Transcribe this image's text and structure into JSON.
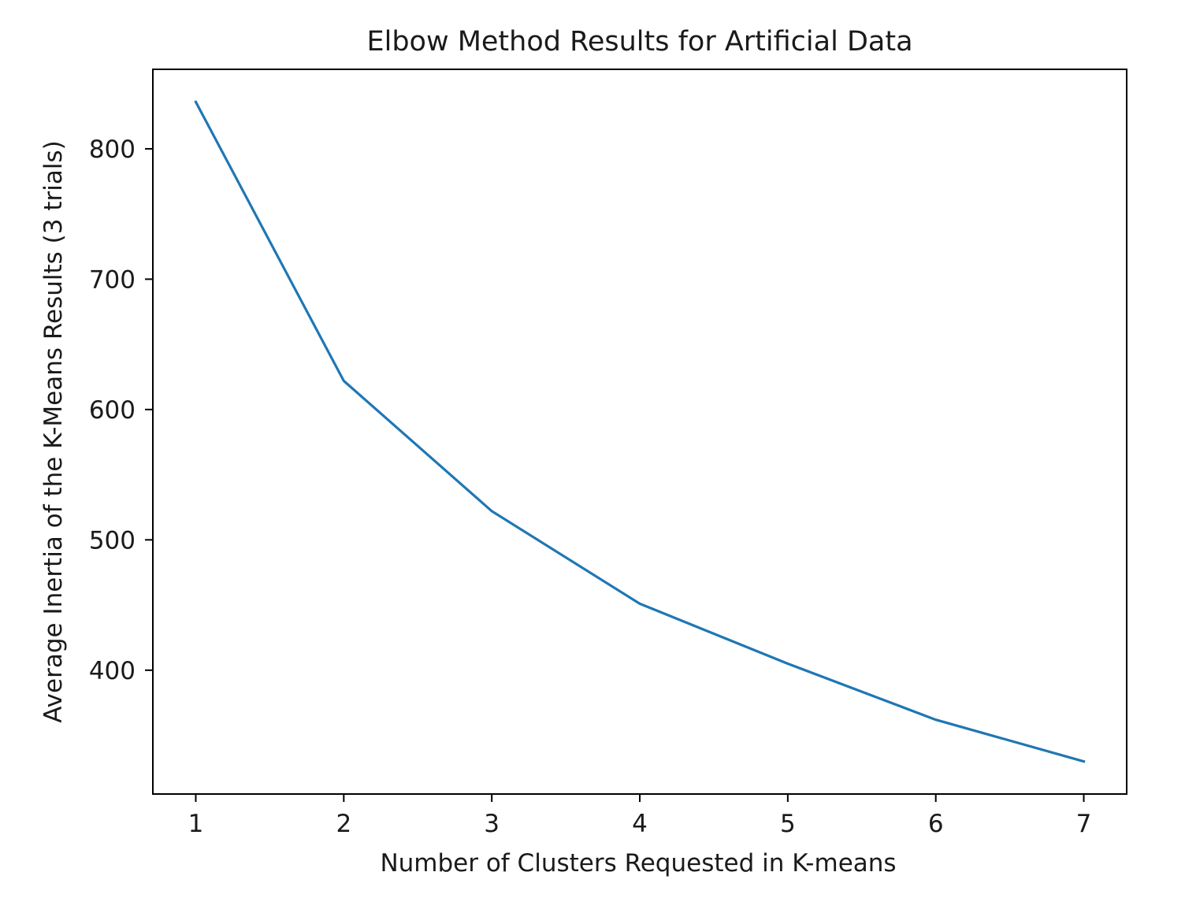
{
  "chart_data": {
    "type": "line",
    "title": "Elbow Method Results for Artificial Data",
    "xlabel": "Number of Clusters Requested in K-means",
    "ylabel": "Average Inertia of the K-Means Results (3 trials)",
    "x": [
      1,
      2,
      3,
      4,
      5,
      6,
      7
    ],
    "series": [
      {
        "values": [
          836,
          622,
          522,
          451,
          405,
          362,
          330
        ]
      }
    ],
    "xticks": [
      "1",
      "2",
      "3",
      "4",
      "5",
      "6",
      "7"
    ],
    "yticks": [
      "400",
      "500",
      "600",
      "700",
      "800"
    ],
    "xlim": [
      0.71,
      7.29
    ],
    "ylim": [
      305,
      861
    ],
    "grid": false,
    "legend": "none",
    "line_color": "#1f77b4"
  }
}
